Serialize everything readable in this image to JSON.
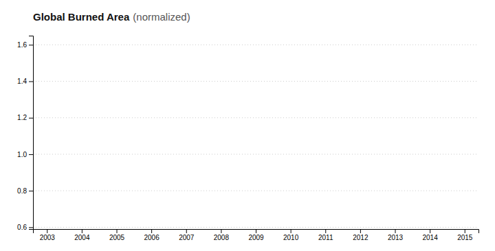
{
  "chart_data": {
    "type": "line",
    "title": "Global Burned Area",
    "subtitle": "(normalized)",
    "xlim": [
      2002.6,
      2015.4
    ],
    "xticks": [
      2003,
      2004,
      2005,
      2006,
      2007,
      2008,
      2009,
      2010,
      2011,
      2012,
      2013,
      2014,
      2015
    ],
    "ylim": [
      0.59,
      1.65
    ],
    "yticks": [
      0.6,
      0.8,
      {
        "value": 1,
        "label": "1.0"
      },
      1.2,
      1.4,
      1.6
    ],
    "grid": true
  }
}
